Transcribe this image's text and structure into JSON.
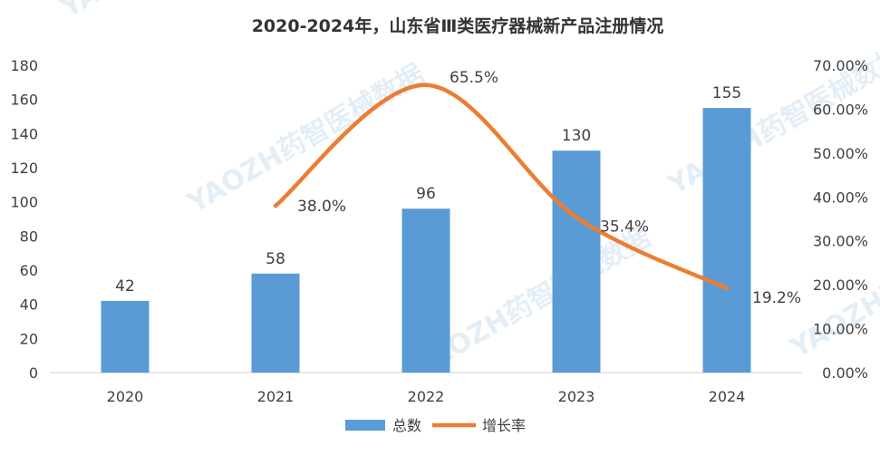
{
  "chart_data": {
    "type": "bar",
    "title": "2020-2024年，山东省Ⅲ类医疗器械新产品注册情况",
    "categories": [
      "2020",
      "2021",
      "2022",
      "2023",
      "2024"
    ],
    "series": [
      {
        "name": "总数",
        "type": "bar",
        "axis": "left",
        "color": "#5b9bd5",
        "values": [
          42,
          58,
          96,
          130,
          155
        ],
        "labels": [
          "42",
          "58",
          "96",
          "130",
          "155"
        ]
      },
      {
        "name": "增长率",
        "type": "line",
        "axis": "right",
        "color": "#ed7d31",
        "smooth": true,
        "values": [
          null,
          38.0,
          65.5,
          35.4,
          19.2
        ],
        "labels": [
          "",
          "38.0%",
          "65.5%",
          "35.4%",
          "19.2%"
        ]
      }
    ],
    "y_left": {
      "min": 0,
      "max": 180,
      "step": 20,
      "ticks": [
        "0",
        "20",
        "40",
        "60",
        "80",
        "100",
        "120",
        "140",
        "160",
        "180"
      ]
    },
    "y_right": {
      "min": 0,
      "max": 70,
      "step": 10,
      "ticks": [
        "0.00%",
        "10.00%",
        "20.00%",
        "30.00%",
        "40.00%",
        "50.00%",
        "60.00%",
        "70.00%"
      ]
    },
    "grid": false,
    "legend": "bottom"
  },
  "watermark": {
    "text": "YAOZH药智医械数据"
  }
}
